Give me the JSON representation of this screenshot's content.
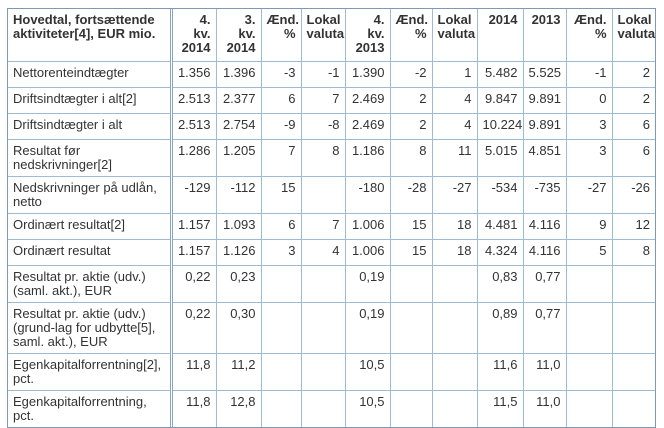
{
  "table": {
    "stub_header": "Hovedtal, fortsættende aktiviteter[4], EUR mio.",
    "columns": [
      {
        "label": "4.\nkv.\n2014",
        "align": "right"
      },
      {
        "label": "3.\nkv.\n2014",
        "align": "right"
      },
      {
        "label": "Ænd.\n%",
        "align": "right"
      },
      {
        "label": "Lokal\nvaluta",
        "align": "center"
      },
      {
        "label": "4.\nkv.\n2013",
        "align": "right"
      },
      {
        "label": "Ænd.\n%",
        "align": "right"
      },
      {
        "label": "Lokal\nvaluta",
        "align": "center"
      },
      {
        "label": "2014",
        "align": "right"
      },
      {
        "label": "2013",
        "align": "right"
      },
      {
        "label": "Ænd.\n%",
        "align": "right"
      },
      {
        "label": "Lokal\nvaluta",
        "align": "center"
      }
    ],
    "rows": [
      {
        "label": "Nettorenteindtægter",
        "values": [
          "1.356",
          "1.396",
          "-3",
          "-1",
          "1.390",
          "-2",
          "1",
          "5.482",
          "5.525",
          "-1",
          "2"
        ]
      },
      {
        "label": "Driftsindtægter i alt[2]",
        "values": [
          "2.513",
          "2.377",
          "6",
          "7",
          "2.469",
          "2",
          "4",
          "9.847",
          "9.891",
          "0",
          "2"
        ]
      },
      {
        "label": "Driftsindtægter i alt",
        "values": [
          "2.513",
          "2.754",
          "-9",
          "-8",
          "2.469",
          "2",
          "4",
          "10.224",
          "9.891",
          "3",
          "6"
        ]
      },
      {
        "label": "Resultat før nedskrivninger[2]",
        "values": [
          "1.286",
          "1.205",
          "7",
          "8",
          "1.186",
          "8",
          "11",
          "5.015",
          "4.851",
          "3",
          "6"
        ]
      },
      {
        "label": "Nedskrivninger på udlån, netto",
        "values": [
          "-129",
          "-112",
          "15",
          "",
          "-180",
          "-28",
          "-27",
          "-534",
          "-735",
          "-27",
          "-26"
        ]
      },
      {
        "label": "Ordinært resultat[2]",
        "values": [
          "1.157",
          "1.093",
          "6",
          "7",
          "1.006",
          "15",
          "18",
          "4.481",
          "4.116",
          "9",
          "12"
        ]
      },
      {
        "label": "Ordinært resultat",
        "values": [
          "1.157",
          "1.126",
          "3",
          "4",
          "1.006",
          "15",
          "18",
          "4.324",
          "4.116",
          "5",
          "8"
        ]
      },
      {
        "label": "Resultat pr. aktie (udv.) (saml. akt.), EUR",
        "values": [
          "0,22",
          "0,23",
          "",
          "",
          "0,19",
          "",
          "",
          "0,83",
          "0,77",
          "",
          ""
        ]
      },
      {
        "label": "Resultat pr. aktie (udv.) (grund-lag for udbytte[5], saml. akt.), EUR",
        "values": [
          "0,22",
          "0,30",
          "",
          "",
          "0,19",
          "",
          "",
          "0,89",
          "0,77",
          "",
          ""
        ]
      },
      {
        "label": "Egenkapitalforrentning[2], pct.",
        "values": [
          "11,8",
          "11,2",
          "",
          "",
          "10,5",
          "",
          "",
          "11,6",
          "11,0",
          "",
          ""
        ]
      },
      {
        "label": "Egenkapitalforrentning, pct.",
        "values": [
          "11,8",
          "12,8",
          "",
          "",
          "10,5",
          "",
          "",
          "11,5",
          "11,0",
          "",
          ""
        ]
      }
    ],
    "colors": {
      "outer_border": "#7c99b6",
      "inner_border": "#9fbad4",
      "stub_divider": "#87a4c2",
      "text": "#333333",
      "background": "#ffffff"
    }
  }
}
